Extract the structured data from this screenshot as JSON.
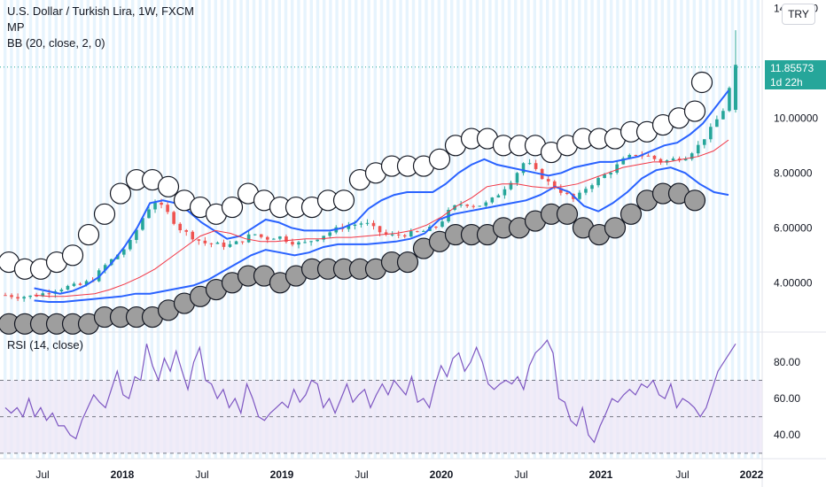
{
  "legend": {
    "symbol": "U.S. Dollar / Turkish Lira, 1W, FXCM",
    "indicator1": "MP",
    "indicator2": "BB (20, close, 2, 0)"
  },
  "rsi_legend": "RSI (14, close)",
  "currency": "TRY",
  "price_tag": {
    "price": "11.85573",
    "countdown": "1d 22h"
  },
  "colors": {
    "up": "#26a69a",
    "down": "#ef5350",
    "bb": "#2962ff",
    "basis": "#f23645",
    "rsi_line": "#7e57c2",
    "rsi_band": "#ede7f6",
    "stripe": "#e3f2fd"
  },
  "chart_data": [
    {
      "type": "candlestick",
      "title": "U.S. Dollar / Turkish Lira, 1W, FXCM",
      "x_ticks": [
        "Jul",
        "2018",
        "Jul",
        "2019",
        "Jul",
        "2020",
        "Jul",
        "2021",
        "Jul",
        "2022"
      ],
      "y_ticks": [
        "4.00000",
        "6.00000",
        "8.00000",
        "10.00000",
        "14.00000"
      ],
      "ylim": [
        2.3,
        14.3
      ],
      "last_price": 11.85573,
      "close_path": [
        3.55,
        3.5,
        3.5,
        3.6,
        3.75,
        3.85,
        3.9,
        4.1,
        4.6,
        5.0,
        5.4,
        6.3,
        7.0,
        6.6,
        6.0,
        5.7,
        5.45,
        5.4,
        5.35,
        5.5,
        5.8,
        5.6,
        5.7,
        5.5,
        5.4,
        5.6,
        5.8,
        6.0,
        6.1,
        6.2,
        5.9,
        5.7,
        5.75,
        5.8,
        5.9,
        6.1,
        6.7,
        6.9,
        6.8,
        6.9,
        7.3,
        7.8,
        8.45,
        8.0,
        7.6,
        7.3,
        7.0,
        7.5,
        7.8,
        8.1,
        8.5,
        8.7,
        8.6,
        8.4,
        8.5,
        8.6,
        9.0,
        9.6,
        10.3,
        11.86
      ],
      "bb_upper": [
        3.8,
        3.7,
        3.6,
        3.7,
        3.9,
        4.2,
        4.7,
        5.3,
        6.0,
        6.9,
        7.0,
        6.9,
        6.6,
        6.2,
        5.9,
        5.6,
        5.7,
        6.0,
        6.3,
        6.2,
        6.0,
        5.9,
        5.9,
        5.9,
        6.0,
        6.2,
        6.7,
        7.0,
        7.2,
        7.3,
        7.3,
        7.3,
        7.6,
        8.0,
        8.3,
        8.5,
        8.3,
        8.2,
        8.1,
        8.0,
        7.9,
        8.0,
        8.2,
        8.3,
        8.4,
        8.4,
        8.5,
        8.6,
        8.8,
        9.0,
        9.1,
        9.4,
        9.8,
        10.4,
        11.0
      ],
      "bb_lower": [
        3.35,
        3.3,
        3.3,
        3.35,
        3.4,
        3.45,
        3.5,
        3.6,
        3.6,
        3.7,
        3.8,
        3.9,
        4.1,
        4.4,
        4.7,
        5.0,
        5.2,
        5.1,
        5.0,
        5.1,
        5.3,
        5.4,
        5.4,
        5.4,
        5.45,
        5.5,
        5.6,
        5.8,
        6.3,
        6.5,
        6.6,
        6.7,
        6.8,
        6.9,
        7.0,
        7.2,
        7.5,
        7.3,
        6.8,
        6.6,
        6.9,
        7.3,
        7.8,
        8.1,
        8.2,
        8.0,
        7.6,
        7.3,
        7.2
      ],
      "bb_basis": [
        3.55,
        3.5,
        3.5,
        3.55,
        3.6,
        3.75,
        3.95,
        4.2,
        4.5,
        4.9,
        5.3,
        5.7,
        5.9,
        5.8,
        5.6,
        5.5,
        5.5,
        5.55,
        5.6,
        5.6,
        5.65,
        5.65,
        5.7,
        5.75,
        5.8,
        5.9,
        6.1,
        6.4,
        6.8,
        7.1,
        7.5,
        7.6,
        7.6,
        7.5,
        7.45,
        7.5,
        7.6,
        7.8,
        8.0,
        8.2,
        8.3,
        8.4,
        8.4,
        8.5,
        8.6,
        8.8,
        9.2
      ]
    },
    {
      "type": "line",
      "title": "RSI (14, close)",
      "y_ticks": [
        "40.00",
        "60.00",
        "80.00"
      ],
      "ylim": [
        27,
        95
      ],
      "bands": [
        30,
        50,
        70
      ],
      "rsi_values": [
        55,
        52,
        55,
        50,
        60,
        50,
        55,
        48,
        52,
        45,
        45,
        40,
        38,
        48,
        55,
        62,
        58,
        55,
        65,
        75,
        62,
        60,
        72,
        70,
        90,
        78,
        70,
        82,
        75,
        86,
        75,
        65,
        80,
        88,
        70,
        68,
        60,
        65,
        55,
        60,
        52,
        68,
        60,
        50,
        48,
        52,
        55,
        58,
        55,
        65,
        58,
        62,
        70,
        68,
        55,
        60,
        52,
        60,
        68,
        58,
        62,
        65,
        55,
        62,
        68,
        62,
        70,
        66,
        62,
        72,
        58,
        60,
        55,
        68,
        78,
        72,
        82,
        85,
        75,
        80,
        88,
        80,
        68,
        65,
        68,
        70,
        68,
        72,
        65,
        78,
        85,
        88,
        92,
        85,
        60,
        58,
        48,
        45,
        55,
        40,
        36,
        45,
        52,
        60,
        58,
        62,
        65,
        62,
        68,
        66,
        70,
        62,
        60,
        68,
        55,
        60,
        58,
        55,
        50,
        55,
        65,
        75,
        80,
        85,
        90
      ]
    }
  ]
}
